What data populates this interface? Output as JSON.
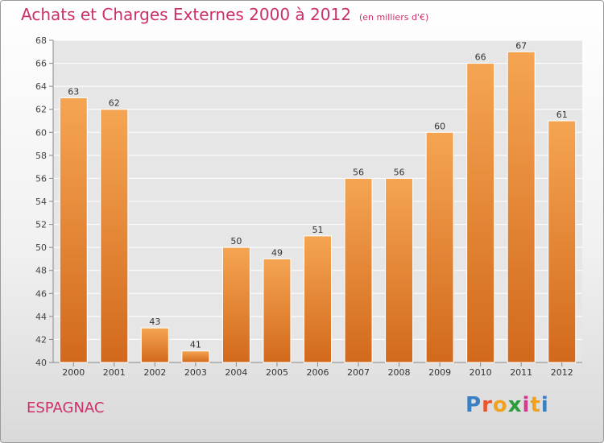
{
  "title": "Achats et Charges Externes 2000 à 2012",
  "unit_label": "(en milliers d'€)",
  "commune": "ESPAGNAC",
  "brand": {
    "letters": [
      "P",
      "r",
      "o",
      "x",
      "i",
      "t",
      "i"
    ],
    "colors": [
      "#3a7fc2",
      "#e8552b",
      "#f2a11d",
      "#2c9c3a",
      "#d63a8c",
      "#f2a11d",
      "#3a7fc2"
    ]
  },
  "colors": {
    "bar_top": "#f5a552",
    "bar_bottom": "#d2691c",
    "title": "#cc2f6a"
  },
  "chart_data": {
    "type": "bar",
    "categories": [
      "2000",
      "2001",
      "2002",
      "2003",
      "2004",
      "2005",
      "2006",
      "2007",
      "2008",
      "2009",
      "2010",
      "2011",
      "2012"
    ],
    "values": [
      63,
      62,
      43,
      41,
      50,
      49,
      51,
      56,
      56,
      60,
      66,
      67,
      61
    ],
    "ylim": [
      40,
      68
    ],
    "yticks": [
      40,
      42,
      44,
      46,
      48,
      50,
      52,
      54,
      56,
      58,
      60,
      62,
      64,
      66,
      68
    ],
    "grid": true,
    "data_labels": true
  }
}
